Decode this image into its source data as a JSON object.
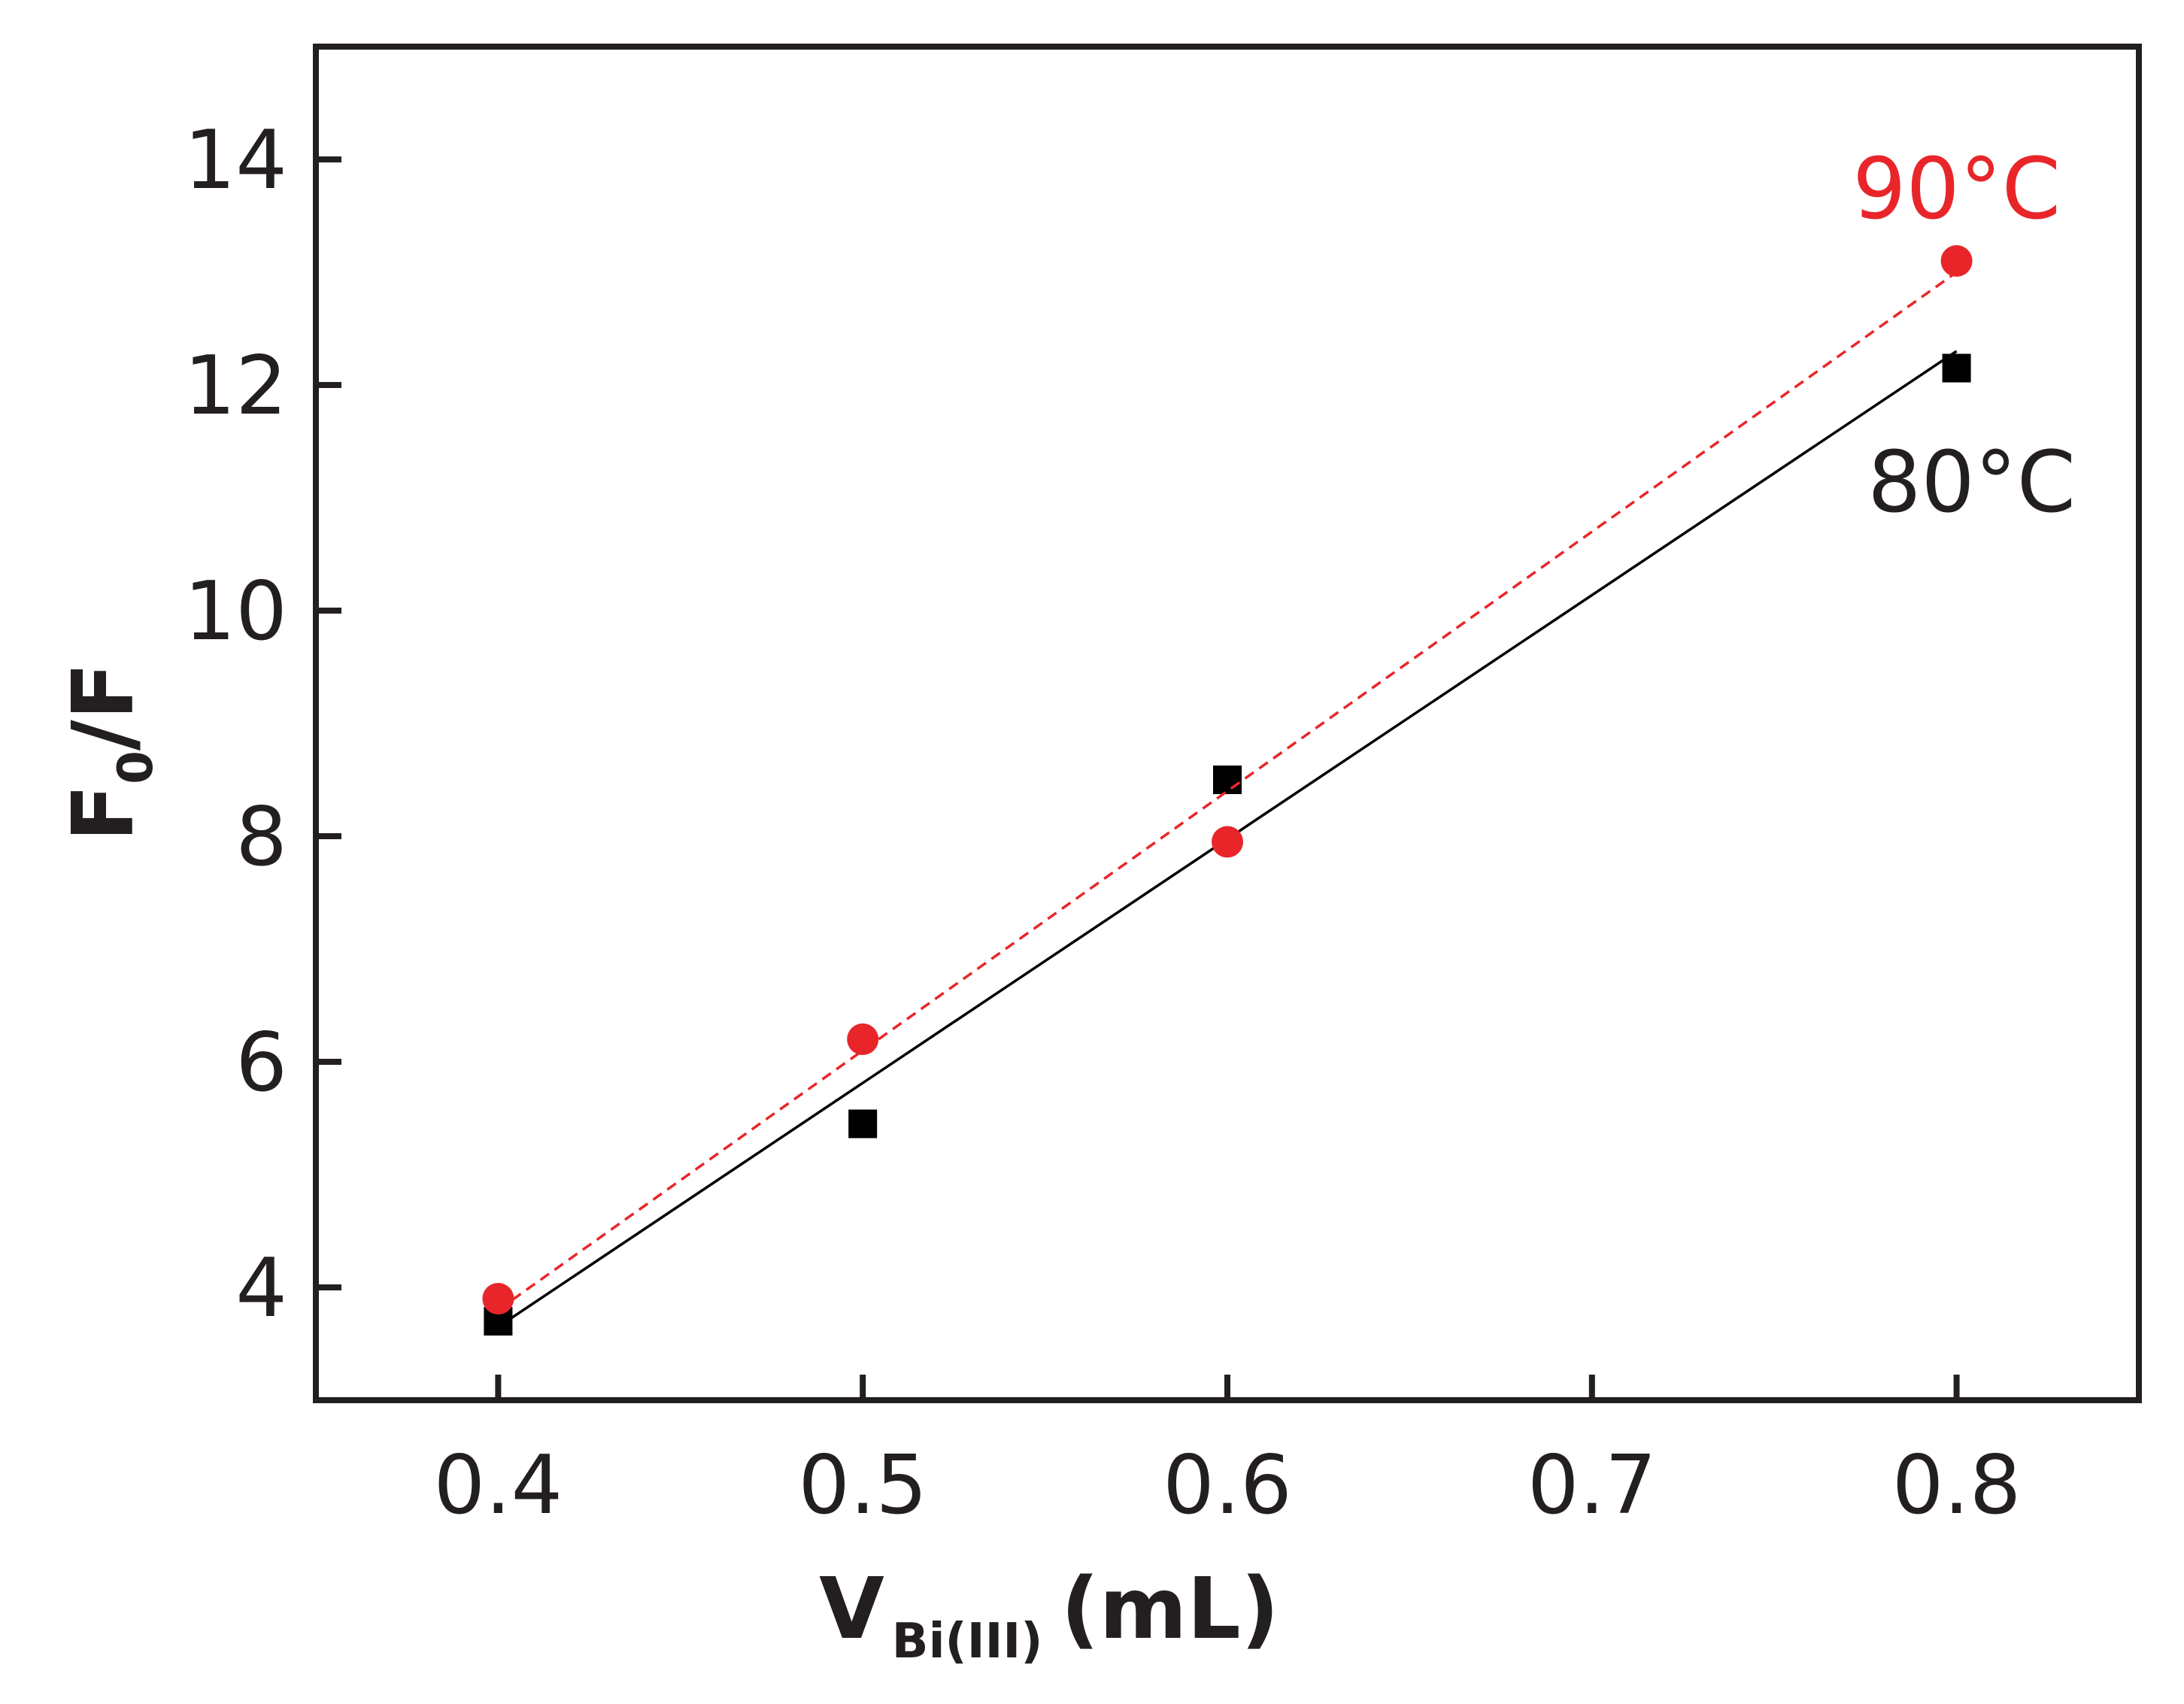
{
  "chart_data": {
    "type": "scatter",
    "xlabel": "V",
    "xlabel_subscript": "Bi(III)",
    "xlabel_unit": "(mL)",
    "ylabel": "F",
    "ylabel_subscript": "0",
    "ylabel_suffix": "/F",
    "xlim": [
      0.35,
      0.85
    ],
    "ylim": [
      3,
      15
    ],
    "xticks": [
      0.4,
      0.5,
      0.6,
      0.7,
      0.8
    ],
    "xtick_labels": [
      "0.4",
      "0.5",
      "0.6",
      "0.7",
      "0.8"
    ],
    "yticks": [
      4,
      6,
      8,
      10,
      12,
      14
    ],
    "ytick_labels": [
      "4",
      "6",
      "8",
      "10",
      "12",
      "14"
    ],
    "grid": false,
    "series": [
      {
        "name": "80°C",
        "label": "80°C",
        "marker": "square",
        "color": "#000000",
        "fit_style": "solid",
        "x": [
          0.4,
          0.5,
          0.6,
          0.8
        ],
        "y": [
          3.7,
          5.45,
          8.5,
          12.15
        ],
        "fit": {
          "x": [
            0.4,
            0.8
          ],
          "y": [
            3.65,
            12.3
          ]
        }
      },
      {
        "name": "90°C",
        "label": "90°C",
        "marker": "circle",
        "color": "#e8262a",
        "fit_style": "dashed",
        "x": [
          0.4,
          0.5,
          0.6,
          0.8
        ],
        "y": [
          3.9,
          6.2,
          7.95,
          13.1
        ],
        "fit": {
          "x": [
            0.4,
            0.8
          ],
          "y": [
            3.8,
            13.0
          ]
        }
      }
    ]
  }
}
